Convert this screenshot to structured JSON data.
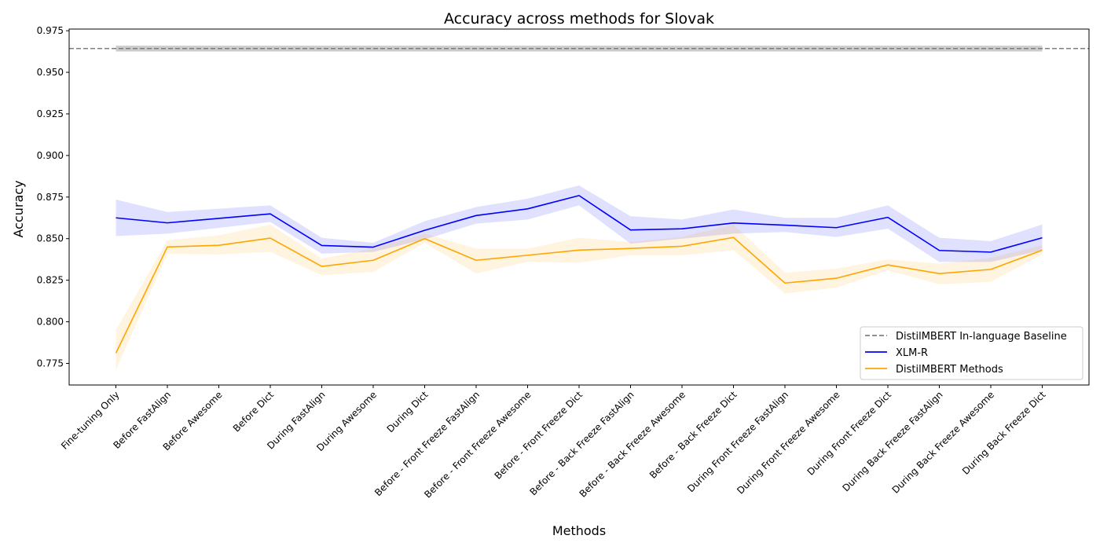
{
  "chart_data": {
    "type": "line",
    "title": "Accuracy across methods for Slovak",
    "xlabel": "Methods",
    "ylabel": "Accuracy",
    "ylim": [
      0.762,
      0.976
    ],
    "yticks": [
      0.775,
      0.8,
      0.825,
      0.85,
      0.875,
      0.9,
      0.925,
      0.95,
      0.975
    ],
    "yticklabels": [
      "0.775",
      "0.800",
      "0.825",
      "0.850",
      "0.875",
      "0.900",
      "0.925",
      "0.950",
      "0.975"
    ],
    "grid": false,
    "legend_position": "bottom-right",
    "categories": [
      "Fine-tuning Only",
      "Before FastAlign",
      "Before Awesome",
      "Before Dict",
      "During FastAlign",
      "During Awesome",
      "During Dict",
      "Before - Front Freeze FastAlign",
      "Before - Front Freeze Awesome",
      "Before - Front Freeze Dict",
      "Before - Back Freeze FastAlign",
      "Before - Back Freeze Awesome",
      "Before - Back Freeze Dict",
      "During Front Freeze FastAlign",
      "During Front Freeze Awesome",
      "During Front Freeze Dict",
      "During Back Freeze FastAlign",
      "During Back Freeze Awesome",
      "During Back Freeze Dict"
    ],
    "baseline": {
      "name": "DistilMBERT In-language Baseline",
      "value": 0.9643,
      "band": [
        0.9625,
        0.966
      ],
      "color": "#808080"
    },
    "series": [
      {
        "name": "XLM-R",
        "color": "#0000ff",
        "values": [
          0.8625,
          0.8595,
          0.8622,
          0.8649,
          0.8459,
          0.8449,
          0.855,
          0.8639,
          0.8679,
          0.8759,
          0.8552,
          0.8559,
          0.8594,
          0.8581,
          0.8566,
          0.8628,
          0.8429,
          0.8419,
          0.8505
        ],
        "lower": [
          0.8515,
          0.853,
          0.8565,
          0.86,
          0.841,
          0.842,
          0.8495,
          0.859,
          0.8615,
          0.87,
          0.847,
          0.85,
          0.853,
          0.854,
          0.851,
          0.856,
          0.836,
          0.836,
          0.843
        ],
        "upper": [
          0.8735,
          0.866,
          0.868,
          0.87,
          0.8505,
          0.8475,
          0.8605,
          0.869,
          0.874,
          0.882,
          0.8635,
          0.8615,
          0.8675,
          0.8625,
          0.8625,
          0.87,
          0.8505,
          0.8485,
          0.8585
        ]
      },
      {
        "name": "DistilMBERT Methods",
        "color": "#ffa500",
        "values": [
          0.7812,
          0.845,
          0.846,
          0.8503,
          0.8333,
          0.837,
          0.85,
          0.837,
          0.84,
          0.8431,
          0.8441,
          0.8454,
          0.8507,
          0.8233,
          0.8262,
          0.8342,
          0.829,
          0.8315,
          0.8431
        ],
        "lower": [
          0.771,
          0.841,
          0.8405,
          0.842,
          0.828,
          0.83,
          0.8475,
          0.829,
          0.836,
          0.8355,
          0.84,
          0.84,
          0.843,
          0.817,
          0.8205,
          0.831,
          0.8225,
          0.824,
          0.8405
        ],
        "upper": [
          0.795,
          0.849,
          0.852,
          0.8585,
          0.838,
          0.844,
          0.853,
          0.844,
          0.844,
          0.8505,
          0.848,
          0.851,
          0.8585,
          0.8295,
          0.832,
          0.8375,
          0.835,
          0.8385,
          0.846
        ]
      }
    ]
  }
}
